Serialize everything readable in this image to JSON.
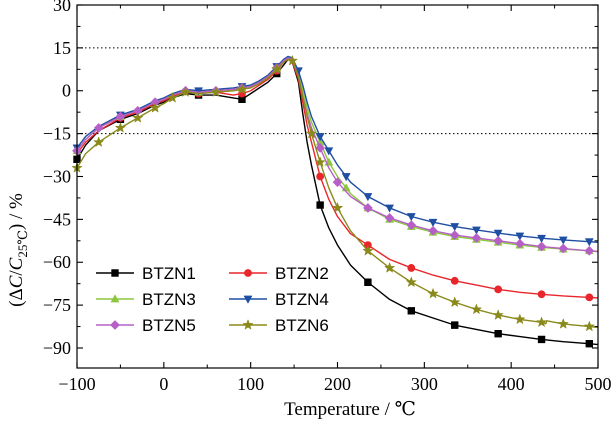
{
  "chart_data": {
    "type": "line",
    "xlabel": "Temperature / ℃",
    "ylabel_parts": {
      "open": "(Δ",
      "c": "C",
      "slash": "/",
      "c2": "C",
      "sub": "25℃",
      "close": ")  / %"
    },
    "xlim": [
      -100,
      500
    ],
    "ylim": [
      -97,
      30
    ],
    "x_ticks": [
      "−100",
      "0",
      "100",
      "200",
      "300",
      "400",
      "500"
    ],
    "x_tick_values": [
      -100,
      0,
      100,
      200,
      300,
      400,
      500
    ],
    "y_ticks": [
      "30",
      "15",
      "0",
      "−15",
      "−30",
      "−45",
      "−60",
      "−75",
      "−90"
    ],
    "y_tick_values": [
      30,
      15,
      0,
      -15,
      -30,
      -45,
      -60,
      -75,
      -90
    ],
    "reference_lines": [
      15,
      -15
    ],
    "grid": false,
    "legend_position": "bottom-left",
    "series": [
      {
        "name": "BTZN1",
        "color": "#000000",
        "marker": "square",
        "points": [
          [
            -100,
            -24
          ],
          [
            -90,
            -19
          ],
          [
            -75,
            -14
          ],
          [
            -50,
            -10
          ],
          [
            -30,
            -8
          ],
          [
            -10,
            -5
          ],
          [
            0,
            -4
          ],
          [
            10,
            -2.5
          ],
          [
            25,
            -1
          ],
          [
            40,
            -1.5
          ],
          [
            60,
            -1.5
          ],
          [
            80,
            -2.5
          ],
          [
            90,
            -3
          ],
          [
            100,
            -1
          ],
          [
            110,
            1
          ],
          [
            120,
            3
          ],
          [
            130,
            6
          ],
          [
            138,
            9
          ],
          [
            143,
            11
          ],
          [
            148,
            10
          ],
          [
            155,
            3
          ],
          [
            160,
            -8
          ],
          [
            165,
            -18
          ],
          [
            170,
            -26
          ],
          [
            180,
            -40
          ],
          [
            190,
            -48
          ],
          [
            200,
            -54
          ],
          [
            215,
            -61
          ],
          [
            235,
            -67
          ],
          [
            260,
            -73
          ],
          [
            285,
            -77
          ],
          [
            310,
            -79.5
          ],
          [
            335,
            -82
          ],
          [
            360,
            -83.5
          ],
          [
            385,
            -85
          ],
          [
            410,
            -86
          ],
          [
            435,
            -87
          ],
          [
            460,
            -87.8
          ],
          [
            490,
            -88.5
          ],
          [
            500,
            -88.8
          ]
        ],
        "marker_x": [
          -100,
          -50,
          40,
          90,
          130,
          180,
          235,
          285,
          335,
          385,
          435,
          490
        ]
      },
      {
        "name": "BTZN2",
        "color": "#e8262b",
        "marker": "circle",
        "points": [
          [
            -100,
            -22
          ],
          [
            -90,
            -18
          ],
          [
            -75,
            -14
          ],
          [
            -50,
            -9.5
          ],
          [
            -30,
            -7.5
          ],
          [
            -10,
            -4.5
          ],
          [
            0,
            -3.5
          ],
          [
            10,
            -2
          ],
          [
            25,
            -0.5
          ],
          [
            40,
            -1
          ],
          [
            60,
            -0.5
          ],
          [
            80,
            -1.5
          ],
          [
            90,
            -1
          ],
          [
            100,
            0
          ],
          [
            110,
            2
          ],
          [
            120,
            4
          ],
          [
            130,
            7
          ],
          [
            138,
            10
          ],
          [
            143,
            11
          ],
          [
            148,
            10
          ],
          [
            155,
            4
          ],
          [
            160,
            -4
          ],
          [
            165,
            -12
          ],
          [
            170,
            -18
          ],
          [
            180,
            -30
          ],
          [
            190,
            -38
          ],
          [
            200,
            -44
          ],
          [
            215,
            -50
          ],
          [
            235,
            -54
          ],
          [
            260,
            -59
          ],
          [
            285,
            -62
          ],
          [
            310,
            -64.5
          ],
          [
            335,
            -66.5
          ],
          [
            360,
            -68
          ],
          [
            385,
            -69.5
          ],
          [
            410,
            -70.5
          ],
          [
            435,
            -71.2
          ],
          [
            460,
            -71.8
          ],
          [
            490,
            -72.3
          ],
          [
            500,
            -72.5
          ]
        ],
        "marker_x": [
          -50,
          40,
          90,
          130,
          180,
          235,
          285,
          335,
          385,
          435,
          490
        ]
      },
      {
        "name": "BTZN3",
        "color": "#8dc63f",
        "marker": "triangle-up",
        "points": [
          [
            -100,
            -21
          ],
          [
            -90,
            -17
          ],
          [
            -75,
            -13
          ],
          [
            -50,
            -9
          ],
          [
            -30,
            -7
          ],
          [
            -10,
            -4
          ],
          [
            0,
            -3
          ],
          [
            10,
            -1.5
          ],
          [
            25,
            0
          ],
          [
            40,
            -0.5
          ],
          [
            60,
            0
          ],
          [
            80,
            0.5
          ],
          [
            90,
            1
          ],
          [
            100,
            1.5
          ],
          [
            110,
            3
          ],
          [
            120,
            5
          ],
          [
            130,
            8
          ],
          [
            138,
            10.5
          ],
          [
            143,
            11.5
          ],
          [
            148,
            11
          ],
          [
            155,
            6
          ],
          [
            160,
            0
          ],
          [
            165,
            -6
          ],
          [
            170,
            -11
          ],
          [
            180,
            -18
          ],
          [
            190,
            -25
          ],
          [
            200,
            -30
          ],
          [
            215,
            -36
          ],
          [
            235,
            -41
          ],
          [
            260,
            -45
          ],
          [
            285,
            -47.5
          ],
          [
            310,
            -49.5
          ],
          [
            335,
            -51
          ],
          [
            360,
            -52
          ],
          [
            385,
            -53
          ],
          [
            410,
            -54
          ],
          [
            435,
            -54.8
          ],
          [
            460,
            -55.4
          ],
          [
            490,
            -56
          ],
          [
            500,
            -56.2
          ]
        ],
        "marker_x": [
          -100,
          -50,
          40,
          90,
          130,
          180,
          190,
          210,
          235,
          260,
          285,
          310,
          335,
          360,
          385,
          410,
          435,
          460,
          490
        ]
      },
      {
        "name": "BTZN4",
        "color": "#1f4fa3",
        "marker": "triangle-down",
        "points": [
          [
            -100,
            -20
          ],
          [
            -90,
            -16
          ],
          [
            -75,
            -12.5
          ],
          [
            -50,
            -8.5
          ],
          [
            -30,
            -6.5
          ],
          [
            -10,
            -3.5
          ],
          [
            0,
            -2.5
          ],
          [
            10,
            -1
          ],
          [
            25,
            0.5
          ],
          [
            40,
            0
          ],
          [
            60,
            0.5
          ],
          [
            80,
            1
          ],
          [
            90,
            1.5
          ],
          [
            100,
            2
          ],
          [
            110,
            3.5
          ],
          [
            120,
            5.5
          ],
          [
            130,
            8.5
          ],
          [
            138,
            11
          ],
          [
            143,
            12
          ],
          [
            148,
            11.5
          ],
          [
            155,
            7
          ],
          [
            160,
            2
          ],
          [
            165,
            -4
          ],
          [
            170,
            -9
          ],
          [
            180,
            -16
          ],
          [
            190,
            -21
          ],
          [
            200,
            -26
          ],
          [
            215,
            -32
          ],
          [
            235,
            -37
          ],
          [
            260,
            -41
          ],
          [
            285,
            -44
          ],
          [
            310,
            -46
          ],
          [
            335,
            -47.5
          ],
          [
            360,
            -48.7
          ],
          [
            385,
            -49.8
          ],
          [
            410,
            -50.8
          ],
          [
            435,
            -51.6
          ],
          [
            460,
            -52.2
          ],
          [
            490,
            -52.8
          ],
          [
            500,
            -53
          ]
        ],
        "marker_x": [
          -100,
          -50,
          40,
          90,
          130,
          155,
          180,
          190,
          210,
          235,
          260,
          285,
          310,
          335,
          360,
          385,
          410,
          435,
          460,
          490
        ]
      },
      {
        "name": "BTZN5",
        "color": "#b660c7",
        "marker": "diamond",
        "points": [
          [
            -100,
            -21
          ],
          [
            -90,
            -17
          ],
          [
            -75,
            -13
          ],
          [
            -50,
            -9
          ],
          [
            -30,
            -7
          ],
          [
            -10,
            -4
          ],
          [
            0,
            -3
          ],
          [
            10,
            -1.5
          ],
          [
            25,
            0
          ],
          [
            40,
            -0.5
          ],
          [
            60,
            0
          ],
          [
            80,
            0.5
          ],
          [
            90,
            1
          ],
          [
            100,
            1.5
          ],
          [
            110,
            3
          ],
          [
            120,
            5
          ],
          [
            130,
            8
          ],
          [
            138,
            10.5
          ],
          [
            143,
            11.5
          ],
          [
            148,
            11
          ],
          [
            155,
            5
          ],
          [
            160,
            -2
          ],
          [
            165,
            -8
          ],
          [
            170,
            -13
          ],
          [
            180,
            -20
          ],
          [
            190,
            -27
          ],
          [
            200,
            -32
          ],
          [
            215,
            -37
          ],
          [
            235,
            -41
          ],
          [
            260,
            -44.5
          ],
          [
            285,
            -47
          ],
          [
            310,
            -49
          ],
          [
            335,
            -50.5
          ],
          [
            360,
            -51.5
          ],
          [
            385,
            -52.5
          ],
          [
            410,
            -53.5
          ],
          [
            435,
            -54.5
          ],
          [
            460,
            -55.2
          ],
          [
            490,
            -56
          ],
          [
            500,
            -56.3
          ]
        ],
        "marker_x": [
          -100,
          -75,
          -50,
          -30,
          -10,
          25,
          60,
          90,
          130,
          180,
          200,
          235,
          260,
          285,
          310,
          335,
          360,
          385,
          410,
          435,
          460,
          490
        ]
      },
      {
        "name": "BTZN6",
        "color": "#8a8a1c",
        "marker": "star",
        "points": [
          [
            -100,
            -27
          ],
          [
            -90,
            -22
          ],
          [
            -75,
            -18
          ],
          [
            -50,
            -13
          ],
          [
            -30,
            -9.5
          ],
          [
            -10,
            -6
          ],
          [
            0,
            -4.5
          ],
          [
            10,
            -2.5
          ],
          [
            25,
            -0.5
          ],
          [
            40,
            -1
          ],
          [
            60,
            -0.5
          ],
          [
            80,
            0
          ],
          [
            90,
            0.5
          ],
          [
            100,
            1
          ],
          [
            110,
            2.5
          ],
          [
            120,
            4.5
          ],
          [
            130,
            7.5
          ],
          [
            138,
            10
          ],
          [
            143,
            11
          ],
          [
            148,
            10.5
          ],
          [
            155,
            5
          ],
          [
            160,
            -2
          ],
          [
            165,
            -9
          ],
          [
            170,
            -15
          ],
          [
            180,
            -25
          ],
          [
            190,
            -34
          ],
          [
            200,
            -41
          ],
          [
            215,
            -49
          ],
          [
            235,
            -56
          ],
          [
            260,
            -62
          ],
          [
            285,
            -67
          ],
          [
            310,
            -71
          ],
          [
            335,
            -74
          ],
          [
            360,
            -76.5
          ],
          [
            385,
            -78.5
          ],
          [
            410,
            -80
          ],
          [
            435,
            -81
          ],
          [
            440,
            -81.5
          ],
          [
            441,
            -80.5
          ],
          [
            460,
            -81.6
          ],
          [
            490,
            -82.5
          ],
          [
            500,
            -82.8
          ]
        ],
        "marker_x": [
          -100,
          -75,
          -50,
          -30,
          -10,
          10,
          25,
          60,
          90,
          130,
          148,
          170,
          180,
          200,
          235,
          260,
          285,
          310,
          335,
          360,
          385,
          410,
          435,
          460,
          490
        ]
      }
    ]
  }
}
